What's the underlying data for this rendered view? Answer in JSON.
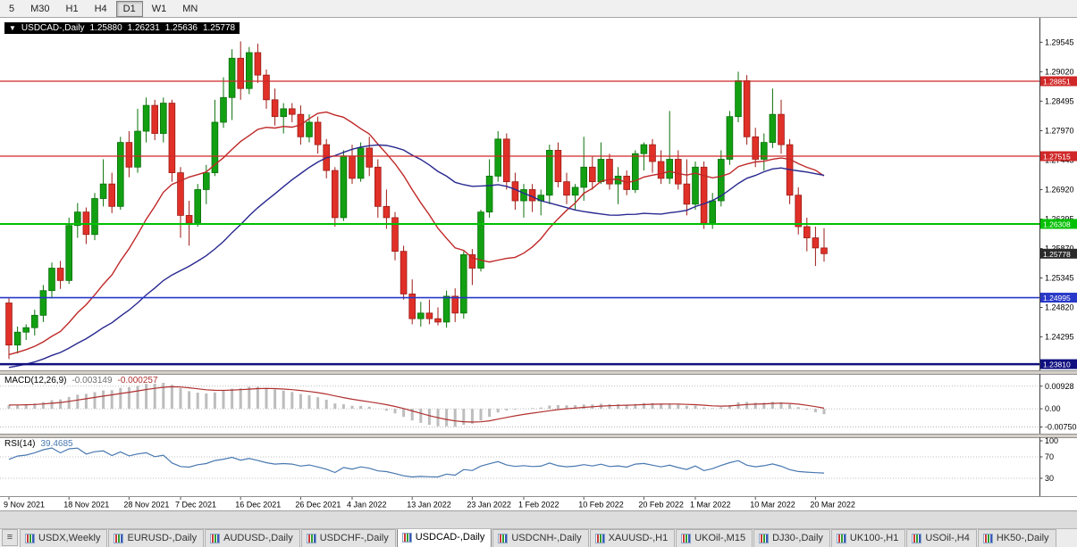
{
  "toolbar": {
    "timeframes": [
      "5",
      "M30",
      "H1",
      "H4",
      "D1",
      "W1",
      "MN"
    ],
    "active": "D1"
  },
  "header": {
    "collapse_icon": "▼",
    "symbol": "USDCAD-,Daily",
    "open": "1.25880",
    "high": "1.26231",
    "low": "1.25636",
    "close": "1.25778"
  },
  "indicators": {
    "macd": {
      "title": "MACD(12,26,9)",
      "main": "-0.003149",
      "signal": "-0.000257"
    },
    "rsi": {
      "title": "RSI(14)",
      "value": "39.4685"
    }
  },
  "colors": {
    "up": "#12a012",
    "up_edge": "#0a700a",
    "down": "#e03028",
    "down_edge": "#9c1c16",
    "axis_border": "#404040",
    "separator": "#d4d0c8",
    "separator_edge": "#909090",
    "grid_dotted": "#a8a8a8"
  },
  "chart_data": {
    "type": "candlestick",
    "symbol": "USDCAD-",
    "timeframe": "Daily",
    "title": "USDCAD-,Daily",
    "current_bar": {
      "open": 1.2588,
      "high": 1.26231,
      "low": 1.25636,
      "close": 1.25778
    },
    "y_axis": {
      "min": 1.237,
      "max": 1.299,
      "labels": [
        "1.29545",
        "1.29020",
        "1.28495",
        "1.27970",
        "1.27445",
        "1.26920",
        "1.26395",
        "1.25870",
        "1.25345",
        "1.24820",
        "1.24295",
        "1.23770"
      ]
    },
    "x_labels": [
      {
        "i": 0,
        "t": "9 Nov 2021"
      },
      {
        "i": 7,
        "t": "18 Nov 2021"
      },
      {
        "i": 14,
        "t": "28 Nov 2021"
      },
      {
        "i": 20,
        "t": "7 Dec 2021"
      },
      {
        "i": 27,
        "t": "16 Dec 2021"
      },
      {
        "i": 34,
        "t": "26 Dec 2021"
      },
      {
        "i": 40,
        "t": "4 Jan 2022"
      },
      {
        "i": 47,
        "t": "13 Jan 2022"
      },
      {
        "i": 54,
        "t": "23 Jan 2022"
      },
      {
        "i": 60,
        "t": "1 Feb 2022"
      },
      {
        "i": 67,
        "t": "10 Feb 2022"
      },
      {
        "i": 74,
        "t": "20 Feb 2022"
      },
      {
        "i": 80,
        "t": "1 Mar 2022"
      },
      {
        "i": 87,
        "t": "10 Mar 2022"
      },
      {
        "i": 94,
        "t": "20 Mar 2022"
      }
    ],
    "candles": [
      [
        1.249,
        1.2498,
        1.239,
        1.2415
      ],
      [
        1.2415,
        1.2448,
        1.24,
        1.2438
      ],
      [
        1.2438,
        1.2452,
        1.2424,
        1.2446
      ],
      [
        1.2446,
        1.2478,
        1.2432,
        1.2468
      ],
      [
        1.2468,
        1.2522,
        1.2456,
        1.2512
      ],
      [
        1.2512,
        1.2562,
        1.2498,
        1.2552
      ],
      [
        1.2552,
        1.2565,
        1.2515,
        1.253
      ],
      [
        1.253,
        1.2642,
        1.2524,
        1.2628
      ],
      [
        1.2628,
        1.2668,
        1.2606,
        1.2652
      ],
      [
        1.2652,
        1.266,
        1.2595,
        1.2612
      ],
      [
        1.2612,
        1.2686,
        1.2602,
        1.2676
      ],
      [
        1.2676,
        1.2746,
        1.2662,
        1.2702
      ],
      [
        1.2702,
        1.2722,
        1.265,
        1.2662
      ],
      [
        1.2662,
        1.2786,
        1.2656,
        1.2776
      ],
      [
        1.2776,
        1.2796,
        1.2714,
        1.2732
      ],
      [
        1.2732,
        1.2836,
        1.2722,
        1.2796
      ],
      [
        1.2796,
        1.2856,
        1.2776,
        1.2842
      ],
      [
        1.2842,
        1.2852,
        1.278,
        1.2792
      ],
      [
        1.2792,
        1.2856,
        1.2776,
        1.2846
      ],
      [
        1.2846,
        1.2852,
        1.2706,
        1.2722
      ],
      [
        1.2722,
        1.2732,
        1.2606,
        1.2646
      ],
      [
        1.2646,
        1.2672,
        1.2592,
        1.2632
      ],
      [
        1.2632,
        1.2702,
        1.2626,
        1.2692
      ],
      [
        1.2692,
        1.2736,
        1.2666,
        1.2722
      ],
      [
        1.2722,
        1.2852,
        1.2716,
        1.2812
      ],
      [
        1.2812,
        1.2892,
        1.2802,
        1.2856
      ],
      [
        1.2856,
        1.2942,
        1.2816,
        1.2926
      ],
      [
        1.2926,
        1.2956,
        1.2852,
        1.2872
      ],
      [
        1.2872,
        1.2946,
        1.2862,
        1.2936
      ],
      [
        1.2936,
        1.2952,
        1.2882,
        1.2896
      ],
      [
        1.2896,
        1.2906,
        1.2836,
        1.2852
      ],
      [
        1.2852,
        1.2872,
        1.2806,
        1.2822
      ],
      [
        1.2822,
        1.2846,
        1.2792,
        1.2836
      ],
      [
        1.2836,
        1.2846,
        1.2812,
        1.2826
      ],
      [
        1.2826,
        1.2842,
        1.2772,
        1.2786
      ],
      [
        1.2786,
        1.2826,
        1.2776,
        1.2812
      ],
      [
        1.2812,
        1.2822,
        1.2756,
        1.2772
      ],
      [
        1.2772,
        1.2782,
        1.2712,
        1.2726
      ],
      [
        1.2726,
        1.2732,
        1.2626,
        1.2642
      ],
      [
        1.2642,
        1.2762,
        1.2636,
        1.2752
      ],
      [
        1.2752,
        1.2772,
        1.2702,
        1.2712
      ],
      [
        1.2712,
        1.2776,
        1.2706,
        1.2766
      ],
      [
        1.2766,
        1.2786,
        1.2716,
        1.2732
      ],
      [
        1.2732,
        1.2746,
        1.2642,
        1.2662
      ],
      [
        1.2662,
        1.2692,
        1.2622,
        1.2642
      ],
      [
        1.2642,
        1.2652,
        1.2566,
        1.2582
      ],
      [
        1.2582,
        1.2592,
        1.2496,
        1.2506
      ],
      [
        1.2506,
        1.2532,
        1.2452,
        1.2462
      ],
      [
        1.2462,
        1.2492,
        1.2448,
        1.2472
      ],
      [
        1.2472,
        1.2496,
        1.2452,
        1.2462
      ],
      [
        1.2462,
        1.2482,
        1.245,
        1.2456
      ],
      [
        1.2456,
        1.2512,
        1.2446,
        1.2502
      ],
      [
        1.2502,
        1.2516,
        1.2456,
        1.2472
      ],
      [
        1.2472,
        1.2582,
        1.2462,
        1.2576
      ],
      [
        1.2576,
        1.2586,
        1.2522,
        1.2552
      ],
      [
        1.2552,
        1.2656,
        1.2546,
        1.2652
      ],
      [
        1.2652,
        1.2746,
        1.2642,
        1.2716
      ],
      [
        1.2716,
        1.2796,
        1.2706,
        1.2782
      ],
      [
        1.2782,
        1.2792,
        1.2692,
        1.2706
      ],
      [
        1.2706,
        1.2722,
        1.2656,
        1.2672
      ],
      [
        1.2672,
        1.2702,
        1.2642,
        1.2692
      ],
      [
        1.2692,
        1.2702,
        1.2652,
        1.2672
      ],
      [
        1.2672,
        1.2692,
        1.2646,
        1.2682
      ],
      [
        1.2682,
        1.2772,
        1.2666,
        1.2762
      ],
      [
        1.2762,
        1.2776,
        1.2696,
        1.2706
      ],
      [
        1.2706,
        1.2722,
        1.2666,
        1.2682
      ],
      [
        1.2682,
        1.2702,
        1.2656,
        1.2696
      ],
      [
        1.2696,
        1.2786,
        1.2672,
        1.2732
      ],
      [
        1.2732,
        1.2752,
        1.2692,
        1.2706
      ],
      [
        1.2706,
        1.2776,
        1.2702,
        1.2746
      ],
      [
        1.2746,
        1.2756,
        1.2692,
        1.2702
      ],
      [
        1.2702,
        1.2732,
        1.2666,
        1.2716
      ],
      [
        1.2716,
        1.2726,
        1.2682,
        1.2692
      ],
      [
        1.2692,
        1.2762,
        1.2686,
        1.2756
      ],
      [
        1.2756,
        1.2776,
        1.2726,
        1.2772
      ],
      [
        1.2772,
        1.2782,
        1.2722,
        1.2742
      ],
      [
        1.2742,
        1.2762,
        1.2702,
        1.2712
      ],
      [
        1.2712,
        1.2832,
        1.2702,
        1.2746
      ],
      [
        1.2746,
        1.2762,
        1.2692,
        1.2702
      ],
      [
        1.2702,
        1.2746,
        1.2646,
        1.2666
      ],
      [
        1.2666,
        1.2742,
        1.2656,
        1.2732
      ],
      [
        1.2732,
        1.2742,
        1.2622,
        1.2632
      ],
      [
        1.2632,
        1.2686,
        1.2622,
        1.2672
      ],
      [
        1.2672,
        1.2762,
        1.2662,
        1.2746
      ],
      [
        1.2746,
        1.2832,
        1.2736,
        1.2822
      ],
      [
        1.2822,
        1.2902,
        1.2812,
        1.2886
      ],
      [
        1.2886,
        1.2896,
        1.2772,
        1.2786
      ],
      [
        1.2786,
        1.2802,
        1.2732,
        1.2746
      ],
      [
        1.2746,
        1.2792,
        1.2726,
        1.2776
      ],
      [
        1.2776,
        1.2872,
        1.2766,
        1.2826
      ],
      [
        1.2826,
        1.2852,
        1.2756,
        1.2772
      ],
      [
        1.2772,
        1.2782,
        1.2666,
        1.2682
      ],
      [
        1.2682,
        1.2696,
        1.2612,
        1.2626
      ],
      [
        1.2626,
        1.2642,
        1.2582,
        1.2606
      ],
      [
        1.2606,
        1.2626,
        1.2556,
        1.2588
      ],
      [
        1.2588,
        1.26231,
        1.25636,
        1.25778
      ]
    ],
    "horizontal_lines": [
      {
        "price": 1.28851,
        "label": "1.28851",
        "color": "#d02828",
        "width": 1.3
      },
      {
        "price": 1.27515,
        "label": "1.27515",
        "color": "#d02828",
        "width": 1.3
      },
      {
        "price": 1.26308,
        "label": "1.26308",
        "color": "#00c000",
        "width": 2
      },
      {
        "price": 1.24995,
        "label": "1.24995",
        "color": "#2838c8",
        "width": 1.6
      },
      {
        "price": 1.2381,
        "label": "1.23810",
        "color": "#101080",
        "width": 2.5
      }
    ],
    "current_price_tag": {
      "price": 1.25778,
      "label": "1.25778",
      "color": "#2b2b2b"
    },
    "moving_averages": [
      {
        "period": 15,
        "color": "#c02828",
        "width": 1.4
      },
      {
        "period": 34,
        "color": "#282890",
        "width": 1.4
      }
    ],
    "ma_seed": {
      "bars": 40,
      "drop": 0.01,
      "wiggle": 0.0012
    },
    "macd": {
      "title": "MACD(12,26,9)",
      "main_value": "-0.003149",
      "signal_value": "-0.000257",
      "fast": 12,
      "slow": 26,
      "signal": 9,
      "axis_labels": [
        "0.00928",
        "0.00",
        "-0.00750"
      ],
      "range": [
        -0.0095,
        0.0125
      ],
      "bar_color": "#bdbdbd",
      "signal_color": "#b03030"
    },
    "rsi": {
      "title": "RSI(14)",
      "value": "39.4685",
      "period": 14,
      "levels": [
        70,
        30
      ],
      "axis_labels": [
        "100",
        "70",
        "30"
      ],
      "line_color": "#4878b0"
    }
  },
  "tabs": {
    "menu_icon": "≡",
    "items": [
      {
        "label": "USDX,Weekly",
        "active": false
      },
      {
        "label": "EURUSD-,Daily",
        "active": false
      },
      {
        "label": "AUDUSD-,Daily",
        "active": false
      },
      {
        "label": "USDCHF-,Daily",
        "active": false
      },
      {
        "label": "USDCAD-,Daily",
        "active": true
      },
      {
        "label": "USDCNH-,Daily",
        "active": false
      },
      {
        "label": "XAUUSD-,H1",
        "active": false
      },
      {
        "label": "UKOil-,M15",
        "active": false
      },
      {
        "label": "DJ30-,Daily",
        "active": false
      },
      {
        "label": "UK100-,H1",
        "active": false
      },
      {
        "label": "USOil-,H4",
        "active": false
      },
      {
        "label": "HK50-,Daily",
        "active": false
      }
    ]
  }
}
